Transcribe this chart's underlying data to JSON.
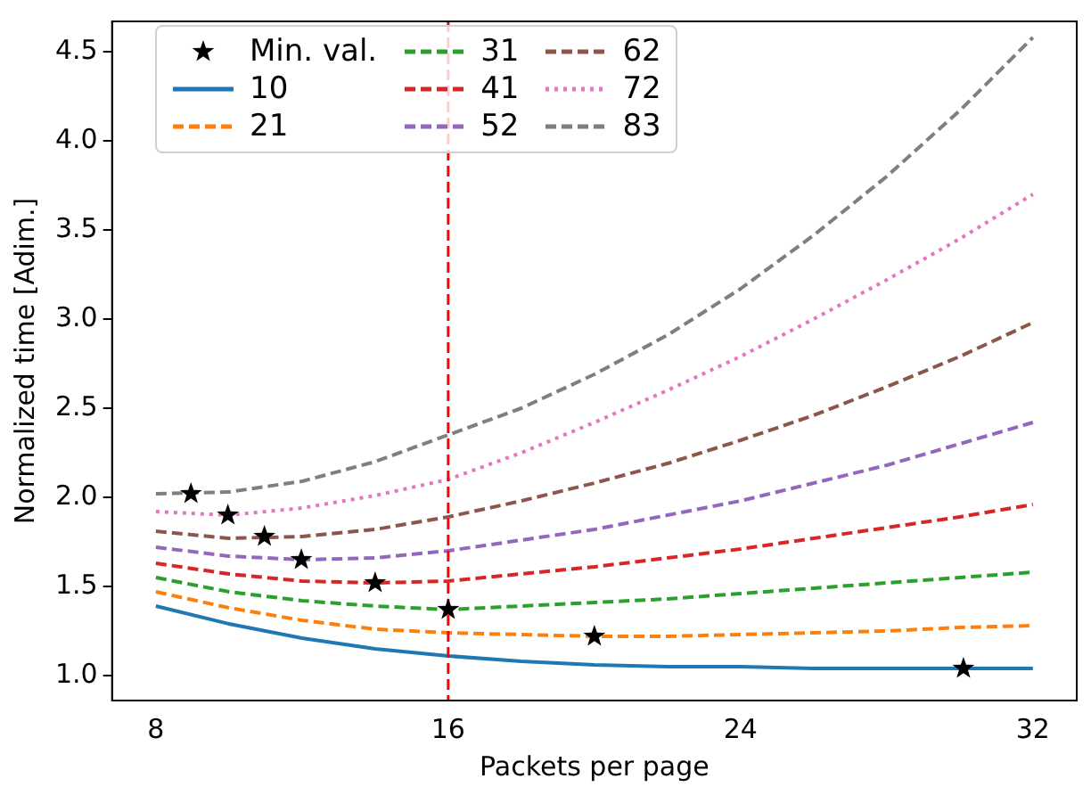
{
  "chart_data": {
    "type": "line",
    "xlabel": "Packets per page",
    "ylabel": "Normalized time [Adim.]",
    "x": [
      8,
      10,
      12,
      14,
      16,
      18,
      20,
      22,
      24,
      26,
      28,
      30,
      32
    ],
    "xlim": [
      6.8,
      33.2
    ],
    "xticks": [
      8,
      16,
      24,
      32
    ],
    "ylim": [
      0.86,
      4.67
    ],
    "yticks": [
      {
        "value": 1,
        "label": "1.0"
      },
      {
        "value": 1.5,
        "label": "1.5"
      },
      {
        "value": 2,
        "label": "2.0"
      },
      {
        "value": 2.5,
        "label": "2.5"
      },
      {
        "value": 3,
        "label": "3.0"
      },
      {
        "value": 3.5,
        "label": "3.5"
      },
      {
        "value": 4,
        "label": "4.0"
      },
      {
        "value": 4.5,
        "label": "4.5"
      }
    ],
    "grid": false,
    "legend": "top left",
    "series": [
      {
        "name": "Min. val.",
        "type": "scatter",
        "marker": "star",
        "color": "#000000",
        "x": [
          8.96,
          9.97,
          10.97,
          11.98,
          14,
          16,
          20,
          30.1
        ],
        "values": [
          2.02,
          1.9,
          1.78,
          1.65,
          1.52,
          1.37,
          1.22,
          1.04
        ]
      },
      {
        "name": "10",
        "color": "#1f77b4",
        "marker": "none",
        "line_style": "solid",
        "values": [
          1.39,
          1.29,
          1.21,
          1.15,
          1.11,
          1.08,
          1.06,
          1.05,
          1.05,
          1.04,
          1.04,
          1.04,
          1.04
        ]
      },
      {
        "name": "21",
        "color": "#ff7f0e",
        "marker": "none",
        "line_style": "dashed",
        "values": [
          1.47,
          1.38,
          1.31,
          1.26,
          1.24,
          1.23,
          1.22,
          1.22,
          1.23,
          1.24,
          1.25,
          1.27,
          1.28
        ]
      },
      {
        "name": "31",
        "color": "#2ca02c",
        "marker": "none",
        "line_style": "dashed",
        "values": [
          1.55,
          1.47,
          1.42,
          1.39,
          1.37,
          1.39,
          1.41,
          1.43,
          1.46,
          1.49,
          1.52,
          1.55,
          1.58
        ]
      },
      {
        "name": "41",
        "color": "#d62728",
        "marker": "none",
        "line_style": "dashed",
        "values": [
          1.63,
          1.57,
          1.53,
          1.52,
          1.53,
          1.57,
          1.61,
          1.66,
          1.71,
          1.77,
          1.83,
          1.89,
          1.96
        ]
      },
      {
        "name": "52",
        "color": "#9467bd",
        "marker": "none",
        "line_style": "dashed",
        "values": [
          1.72,
          1.67,
          1.65,
          1.66,
          1.7,
          1.76,
          1.82,
          1.9,
          1.98,
          2.08,
          2.18,
          2.3,
          2.42
        ]
      },
      {
        "name": "62",
        "color": "#8c564b",
        "marker": "none",
        "line_style": "dashed",
        "values": [
          1.81,
          1.77,
          1.78,
          1.82,
          1.89,
          1.98,
          2.08,
          2.19,
          2.32,
          2.46,
          2.62,
          2.79,
          2.98
        ]
      },
      {
        "name": "72",
        "color": "#e377c2",
        "marker": "none",
        "line_style": "dotted",
        "values": [
          1.92,
          1.9,
          1.94,
          2.01,
          2.1,
          2.25,
          2.42,
          2.6,
          2.79,
          3,
          3.22,
          3.45,
          3.7
        ]
      },
      {
        "name": "83",
        "color": "#7f7f7f",
        "marker": "none",
        "line_style": "dashed",
        "values": [
          2.02,
          2.03,
          2.09,
          2.2,
          2.35,
          2.5,
          2.69,
          2.91,
          3.17,
          3.47,
          3.8,
          4.17,
          4.58
        ]
      }
    ],
    "ref_lines": [
      {
        "axis": "x",
        "value": 16,
        "color": "#ff0000",
        "line_style": "dashed"
      }
    ]
  }
}
